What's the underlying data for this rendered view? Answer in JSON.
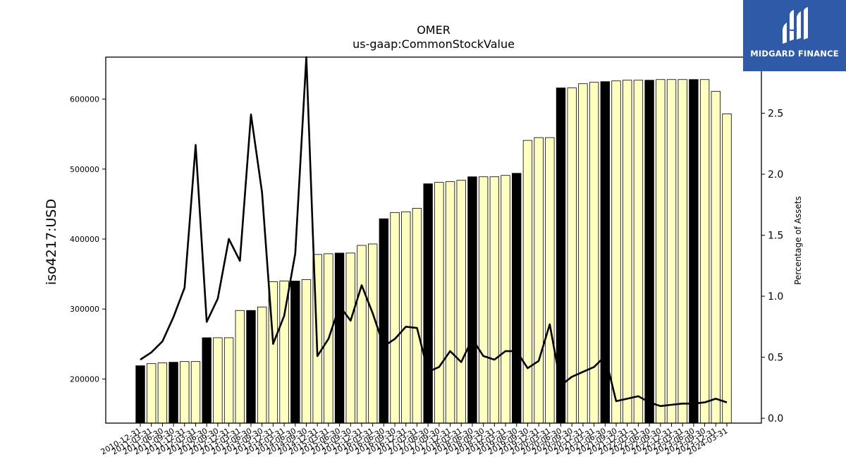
{
  "chart_data": {
    "type": "bar",
    "title": "OMER",
    "subtitle": "us-gaap:CommonStockValue",
    "ylabel": "iso4217:USD",
    "y2label": "Percentage of Assets",
    "ylim": [
      137000,
      660000
    ],
    "y2lim": [
      -0.04,
      2.96
    ],
    "yticks": [
      200000,
      300000,
      400000,
      500000,
      600000
    ],
    "y2ticks": [
      0.0,
      0.5,
      1.0,
      1.5,
      2.0,
      2.5
    ],
    "y2ticklabels": [
      "0.0",
      "0.5",
      "1.0",
      "1.5",
      "2.0",
      "2.5"
    ],
    "bar_colors": {
      "annual": "#000000",
      "quarterly": "#ffffc0"
    },
    "categories": [
      "2010-12-31",
      "2011-03-31",
      "2011-06-30",
      "2011-09-30",
      "2011-12-31",
      "2012-03-31",
      "2012-06-30",
      "2012-09-30",
      "2012-12-31",
      "2013-03-31",
      "2013-06-30",
      "2013-09-30",
      "2013-12-31",
      "2014-03-31",
      "2014-06-30",
      "2014-09-30",
      "2014-12-31",
      "2015-03-31",
      "2015-06-30",
      "2015-09-30",
      "2015-12-31",
      "2016-03-31",
      "2016-06-30",
      "2016-09-30",
      "2016-12-31",
      "2017-03-31",
      "2017-06-30",
      "2017-09-30",
      "2017-12-31",
      "2018-03-31",
      "2018-06-30",
      "2018-09-30",
      "2018-12-31",
      "2019-03-31",
      "2019-06-30",
      "2019-09-30",
      "2019-12-31",
      "2020-03-31",
      "2020-06-30",
      "2020-09-30",
      "2020-12-31",
      "2021-03-31",
      "2021-06-30",
      "2021-09-30",
      "2021-12-31",
      "2022-03-31",
      "2022-06-30",
      "2022-09-30",
      "2022-12-31",
      "2023-03-31",
      "2023-06-30",
      "2023-09-30",
      "2023-12-31",
      "2024-03-31"
    ],
    "annual_flags": [
      1,
      0,
      0,
      1,
      0,
      0,
      1,
      0,
      0,
      0,
      1,
      0,
      0,
      0,
      1,
      0,
      0,
      0,
      1,
      0,
      0,
      0,
      1,
      0,
      0,
      0,
      1,
      0,
      0,
      0,
      1,
      0,
      0,
      0,
      1,
      0,
      0,
      0,
      1,
      0,
      0,
      0,
      1,
      0,
      0,
      0,
      1,
      0,
      0,
      0,
      1,
      0,
      0,
      0
    ],
    "values": [
      219000,
      222000,
      223000,
      224000,
      225000,
      225000,
      259000,
      259000,
      259000,
      298000,
      298000,
      303000,
      339000,
      340000,
      340000,
      342000,
      378000,
      379000,
      380000,
      380000,
      391000,
      393000,
      429000,
      438000,
      439000,
      444000,
      479000,
      481000,
      482000,
      484000,
      489000,
      489000,
      489000,
      491000,
      494000,
      541000,
      545000,
      545000,
      616000,
      616000,
      622000,
      624000,
      625000,
      626000,
      627000,
      627000,
      627000,
      628000,
      628000,
      628000,
      628000,
      628000,
      611000,
      579000
    ],
    "percent_of_assets": [
      0.48,
      0.54,
      0.63,
      0.83,
      1.07,
      2.24,
      0.79,
      0.98,
      1.47,
      1.29,
      2.49,
      1.85,
      0.61,
      0.84,
      1.35,
      3.0,
      0.51,
      0.65,
      0.92,
      0.8,
      1.09,
      0.86,
      0.59,
      0.65,
      0.75,
      0.74,
      0.38,
      0.42,
      0.55,
      0.46,
      0.65,
      0.51,
      0.48,
      0.55,
      0.55,
      0.41,
      0.47,
      0.77,
      0.27,
      0.34,
      0.38,
      0.42,
      0.51,
      0.14,
      0.16,
      0.18,
      0.13,
      0.1,
      0.11,
      0.12,
      0.12,
      0.13,
      0.16,
      0.13
    ],
    "grid": false,
    "legend": "none"
  },
  "logo": {
    "text": "MIDGARD FINANCE"
  }
}
